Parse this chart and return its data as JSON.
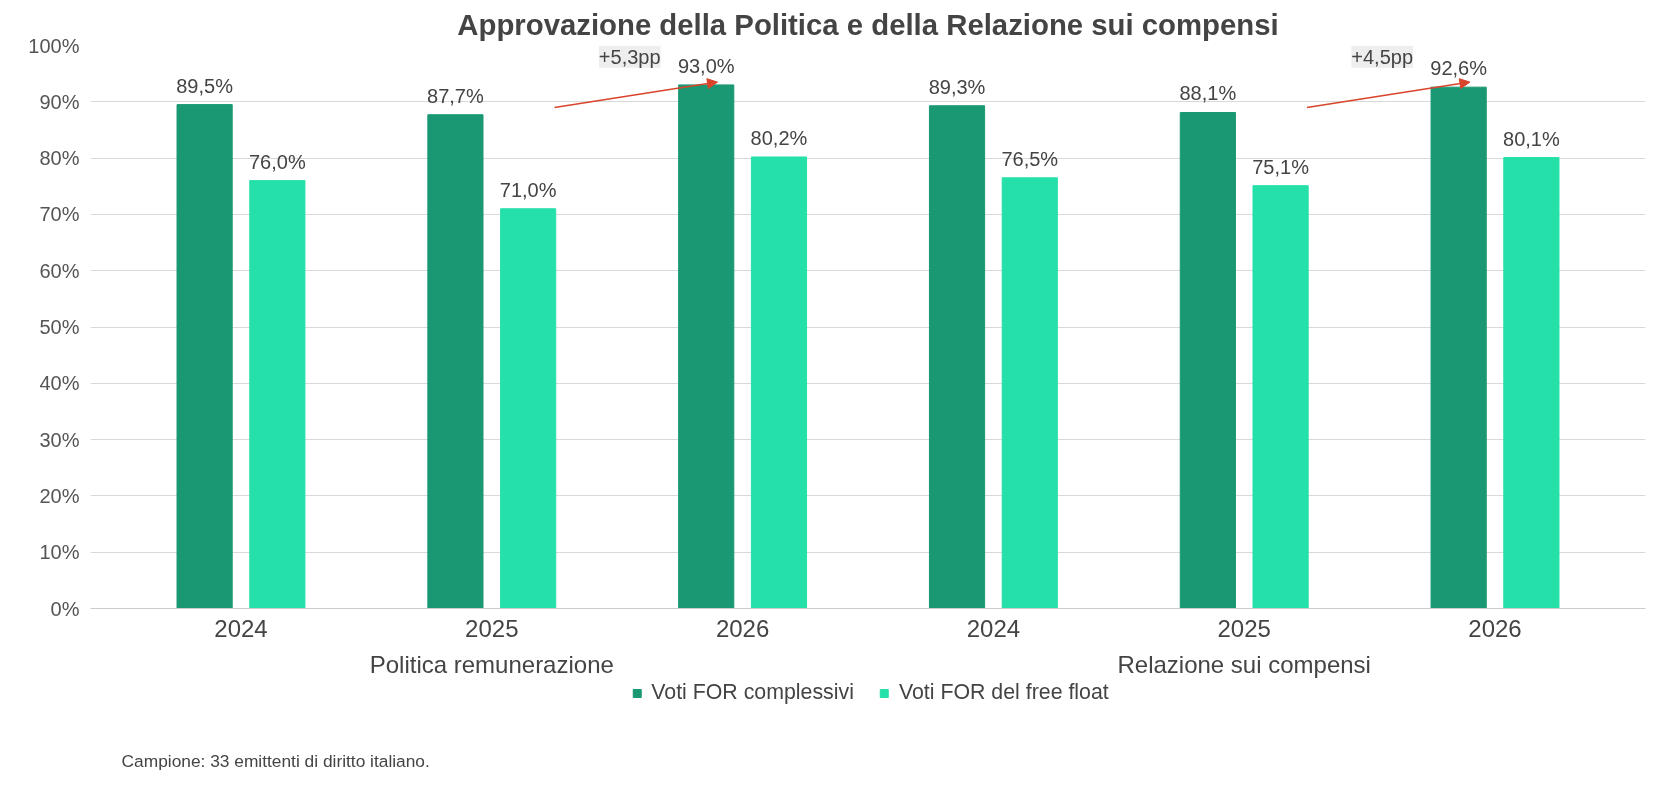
{
  "chart_data": {
    "type": "bar",
    "title": "Approvazione della Politica e della Relazione sui compensi",
    "categories": [
      "2024",
      "2025",
      "2026",
      "2024",
      "2025",
      "2026"
    ],
    "series": [
      {
        "name": "Voti FOR complessivi",
        "color": "#1a9873",
        "values": [
          89.5,
          87.7,
          93.0,
          89.3,
          88.1,
          92.6
        ],
        "value_labels": [
          "89,5%",
          "87,7%",
          "93,0%",
          "89,3%",
          "88,1%",
          "92,6%"
        ]
      },
      {
        "name": "Voti FOR del free float",
        "color": "#26e0aa",
        "values": [
          76.0,
          71.0,
          80.2,
          76.5,
          75.1,
          80.1
        ],
        "value_labels": [
          "76,0%",
          "71,0%",
          "80,2%",
          "76,5%",
          "75,1%",
          "80,1%"
        ]
      }
    ],
    "ylim": [
      0,
      100
    ],
    "yticks": [
      {
        "value": 0,
        "label": "0%"
      },
      {
        "value": 10,
        "label": "10%"
      },
      {
        "value": 20,
        "label": "20%"
      },
      {
        "value": 30,
        "label": "30%"
      },
      {
        "value": 40,
        "label": "40%"
      },
      {
        "value": 50,
        "label": "50%"
      },
      {
        "value": 60,
        "label": "60%"
      },
      {
        "value": 70,
        "label": "70%"
      },
      {
        "value": 80,
        "label": "80%"
      },
      {
        "value": 90,
        "label": "90%"
      },
      {
        "value": 100,
        "label": "100%"
      }
    ],
    "annotations": [
      "+5,3pp",
      "+4,5pp",
      "Politica remunerazione",
      "Relazione sui compensi",
      "Campione: 33 emittenti di diritto italiano."
    ],
    "grid": "y",
    "legend": "bottom"
  }
}
